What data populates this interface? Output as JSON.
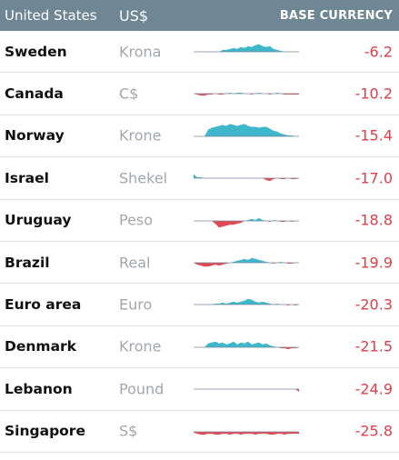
{
  "header": {
    "country": "United States",
    "currency": "US$",
    "base": "BASE CURRENCY"
  },
  "colors": {
    "positive": "#3fb7cb",
    "negative": "#e04a56",
    "baseline": "#7a8a96",
    "header_bg": "#6f8695"
  },
  "chart_data": {
    "type": "table",
    "columns": [
      "United States",
      "US$",
      "",
      "BASE CURRENCY"
    ],
    "rows": [
      {
        "country": "Sweden",
        "currency": "Krona",
        "value": "-6.2",
        "spark": [
          0,
          0,
          0,
          0,
          0,
          0,
          0,
          0,
          2,
          2,
          3,
          4,
          3,
          5,
          4,
          6,
          5,
          7,
          8,
          6,
          5,
          6,
          3,
          2,
          1,
          0,
          0,
          0,
          0,
          0
        ]
      },
      {
        "country": "Canada",
        "currency": "C$",
        "value": "-10.2",
        "spark": [
          0,
          -1,
          -2,
          -2,
          -1,
          -1,
          0,
          -1,
          -1,
          0,
          1,
          0,
          1,
          1,
          0,
          0,
          -1,
          0,
          1,
          0,
          0,
          -1,
          0,
          1,
          0,
          -1,
          -1,
          -1,
          -1,
          -1
        ]
      },
      {
        "country": "Norway",
        "currency": "Krone",
        "value": "-15.4",
        "spark": [
          0,
          0,
          0,
          0,
          7,
          9,
          10,
          11,
          12,
          11,
          13,
          12,
          11,
          12,
          13,
          11,
          10,
          10,
          9,
          10,
          10,
          8,
          6,
          5,
          3,
          2,
          1,
          1,
          0,
          0
        ]
      },
      {
        "country": "Israel",
        "currency": "Shekel",
        "value": "-17.0",
        "spark": [
          4,
          1,
          1,
          0,
          0,
          0,
          0,
          0,
          0,
          0,
          0,
          0,
          0,
          0,
          0,
          0,
          0,
          0,
          0,
          0,
          -2,
          -3,
          -1,
          0,
          -1,
          -1,
          0,
          -1,
          -1,
          0
        ]
      },
      {
        "country": "Uruguay",
        "currency": "Peso",
        "value": "-18.8",
        "spark": [
          0,
          0,
          0,
          0,
          0,
          0,
          -3,
          -7,
          -6,
          -5,
          -4,
          -4,
          -3,
          -2,
          0,
          1,
          2,
          1,
          3,
          1,
          0,
          -1,
          1,
          0,
          -1,
          -1,
          0,
          -1,
          0,
          0
        ]
      },
      {
        "country": "Brazil",
        "currency": "Real",
        "value": "-19.9",
        "spark": [
          0,
          -2,
          -3,
          -4,
          -4,
          -3,
          -2,
          -3,
          -2,
          -1,
          0,
          1,
          2,
          3,
          4,
          3,
          5,
          4,
          3,
          2,
          1,
          0,
          -1,
          0,
          1,
          0,
          -1,
          -1,
          0,
          0
        ]
      },
      {
        "country": "Euro area",
        "currency": "Euro",
        "value": "-20.3",
        "spark": [
          0,
          0,
          0,
          0,
          0,
          0,
          1,
          1,
          2,
          1,
          2,
          3,
          2,
          3,
          4,
          6,
          5,
          3,
          2,
          3,
          2,
          1,
          0,
          1,
          0,
          0,
          -1,
          0,
          -1,
          0
        ]
      },
      {
        "country": "Denmark",
        "currency": "Krone",
        "value": "-21.5",
        "spark": [
          0,
          0,
          0,
          0,
          4,
          5,
          6,
          4,
          5,
          3,
          4,
          6,
          3,
          5,
          4,
          6,
          3,
          4,
          5,
          3,
          4,
          2,
          1,
          0,
          -1,
          -1,
          -2,
          -1,
          -1,
          0
        ]
      },
      {
        "country": "Lebanon",
        "currency": "Pound",
        "value": "-24.9",
        "spark": [
          0,
          0,
          0,
          0,
          0,
          0,
          0,
          0,
          0,
          0,
          0,
          0,
          0,
          0,
          0,
          0,
          0,
          0,
          0,
          0,
          0,
          0,
          0,
          0,
          0,
          0,
          0,
          0,
          0,
          -3
        ]
      },
      {
        "country": "Singapore",
        "currency": "S$",
        "value": "-25.8",
        "spark": [
          -1,
          -2,
          -3,
          -3,
          -2,
          -2,
          -3,
          -3,
          -2,
          -2,
          -3,
          -2,
          -2,
          -3,
          -2,
          -2,
          -2,
          -3,
          -2,
          -2,
          -2,
          -3,
          -3,
          -2,
          -2,
          -3,
          -2,
          -2,
          -2,
          -2
        ]
      }
    ]
  }
}
